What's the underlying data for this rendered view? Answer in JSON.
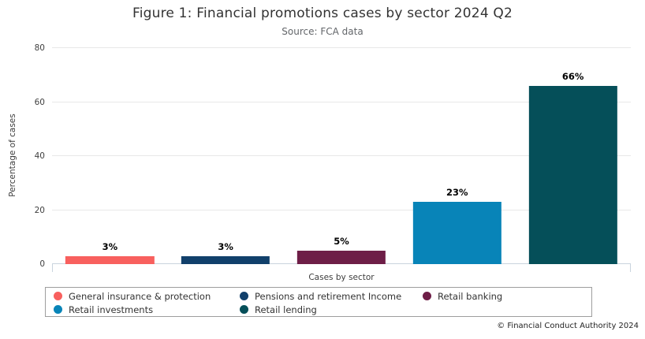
{
  "chart_data": {
    "type": "bar",
    "title": "Figure 1: Financial promotions cases by sector 2024 Q2",
    "subtitle": "Source: FCA data",
    "xlabel": "Cases by sector",
    "ylabel": "Percentage of cases",
    "categories": [
      "General insurance & protection",
      "Pensions and retirement Income",
      "Retail banking",
      "Retail investments",
      "Retail lending"
    ],
    "values": [
      3,
      3,
      5,
      23,
      66
    ],
    "value_labels": [
      "3%",
      "3%",
      "5%",
      "23%",
      "66%"
    ],
    "colors": [
      "#F8605E",
      "#11406B",
      "#6E1E47",
      "#0884B8",
      "#054F59"
    ],
    "ylim": [
      0,
      80
    ],
    "yticks": [
      0,
      20,
      40,
      60,
      80
    ],
    "grid": true,
    "legend_position": "bottom",
    "legend_order": [
      0,
      1,
      2,
      3,
      4
    ]
  },
  "footer": {
    "copyright": "© Financial Conduct Authority 2024"
  }
}
